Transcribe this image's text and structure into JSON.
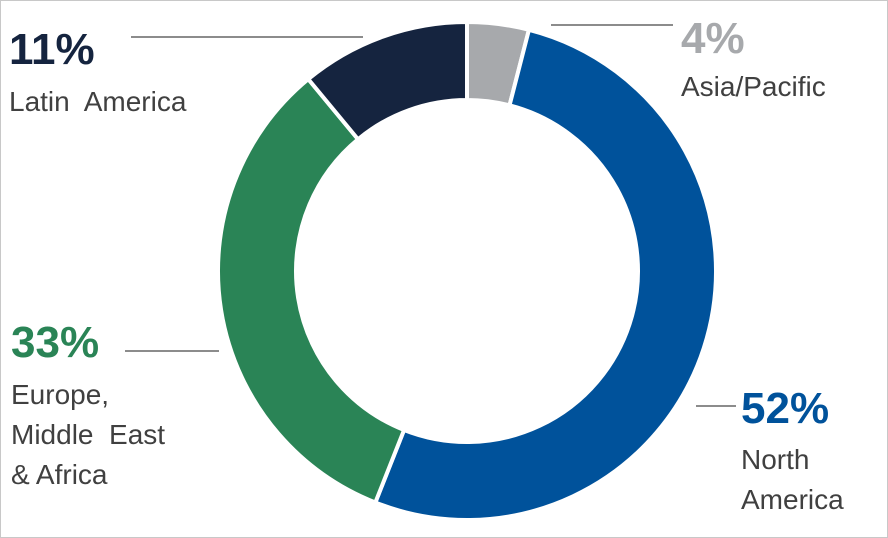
{
  "chart_data": {
    "type": "pie",
    "donut": true,
    "legend": "none",
    "slices": [
      {
        "label": "Asia/Pacific",
        "label_lines": [
          "Asia/Pacific"
        ],
        "value": 4,
        "value_label": "4%",
        "color": "#a7a9ac"
      },
      {
        "label": "North America",
        "label_lines": [
          "North",
          "America"
        ],
        "value": 52,
        "value_label": "52%",
        "color": "#00529b"
      },
      {
        "label": "Europe, Middle East & Africa",
        "label_lines": [
          "Europe,",
          "Middle  East",
          "& Africa"
        ],
        "value": 33,
        "value_label": "33%",
        "color": "#2a8456"
      },
      {
        "label": "Latin America",
        "label_lines": [
          "Latin  America"
        ],
        "value": 11,
        "value_label": "11%",
        "color": "#15243f"
      }
    ],
    "leader_line_color": "#8c8c8c",
    "label_text_color": "#404040"
  }
}
